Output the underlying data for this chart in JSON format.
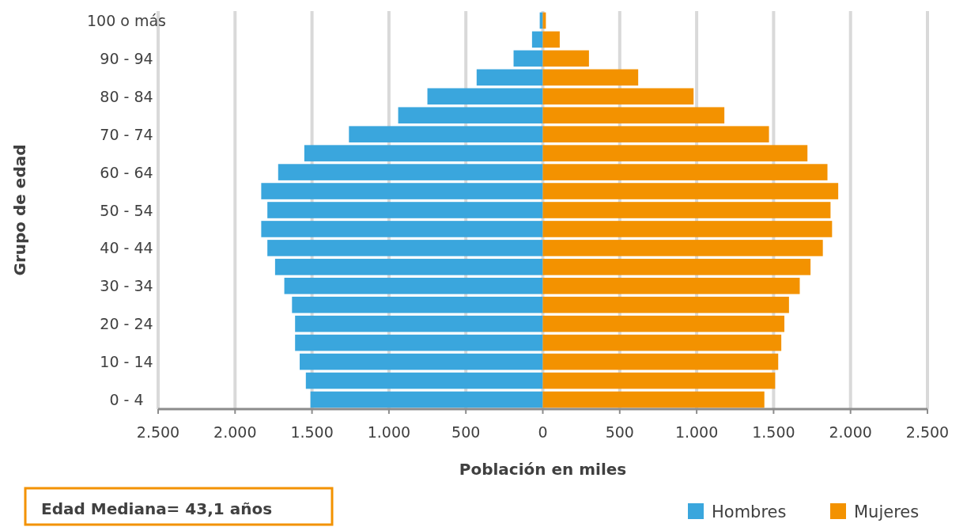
{
  "chart_data": {
    "type": "bar",
    "orientation": "horizontal",
    "stacked": true,
    "ylabel": "Grupo de edad",
    "xlabel": "Población en miles",
    "categories": [
      "100 o más",
      null,
      "90 - 94",
      null,
      "80 - 84",
      null,
      "70 - 74",
      null,
      "60 - 64",
      null,
      "50 - 54",
      null,
      "40 - 44",
      null,
      "30 - 34",
      null,
      "20 - 24",
      null,
      "10 - 14",
      null,
      "0 -  4"
    ],
    "series": [
      {
        "name": "Hombres",
        "color": "#3aa6dd",
        "values": [
          -20,
          -70,
          -190,
          -430,
          -750,
          -940,
          -1260,
          -1550,
          -1720,
          -1830,
          -1790,
          -1830,
          -1790,
          -1740,
          -1680,
          -1630,
          -1610,
          -1610,
          -1580,
          -1540,
          -1510
        ]
      },
      {
        "name": "Mujeres",
        "color": "#f39200",
        "values": [
          20,
          110,
          300,
          620,
          980,
          1180,
          1470,
          1720,
          1850,
          1920,
          1870,
          1880,
          1820,
          1740,
          1670,
          1600,
          1570,
          1550,
          1530,
          1510,
          1440
        ]
      }
    ],
    "xlim": [
      -2500,
      2500
    ],
    "xticks": [
      {
        "value": -2500,
        "label": "2.500"
      },
      {
        "value": -2000,
        "label": "2.000"
      },
      {
        "value": -1500,
        "label": "1.500"
      },
      {
        "value": -1000,
        "label": "1.000"
      },
      {
        "value": -500,
        "label": "500"
      },
      0,
      500,
      {
        "value": 1000,
        "label": "1.000"
      },
      {
        "value": 1500,
        "label": "1.500"
      },
      {
        "value": 2000,
        "label": "2.000"
      },
      {
        "value": 2500,
        "label": "2.500"
      }
    ],
    "grid": "x",
    "legend": "bottom right",
    "annotations": [
      "Edad Mediana= 43,1 años"
    ]
  }
}
